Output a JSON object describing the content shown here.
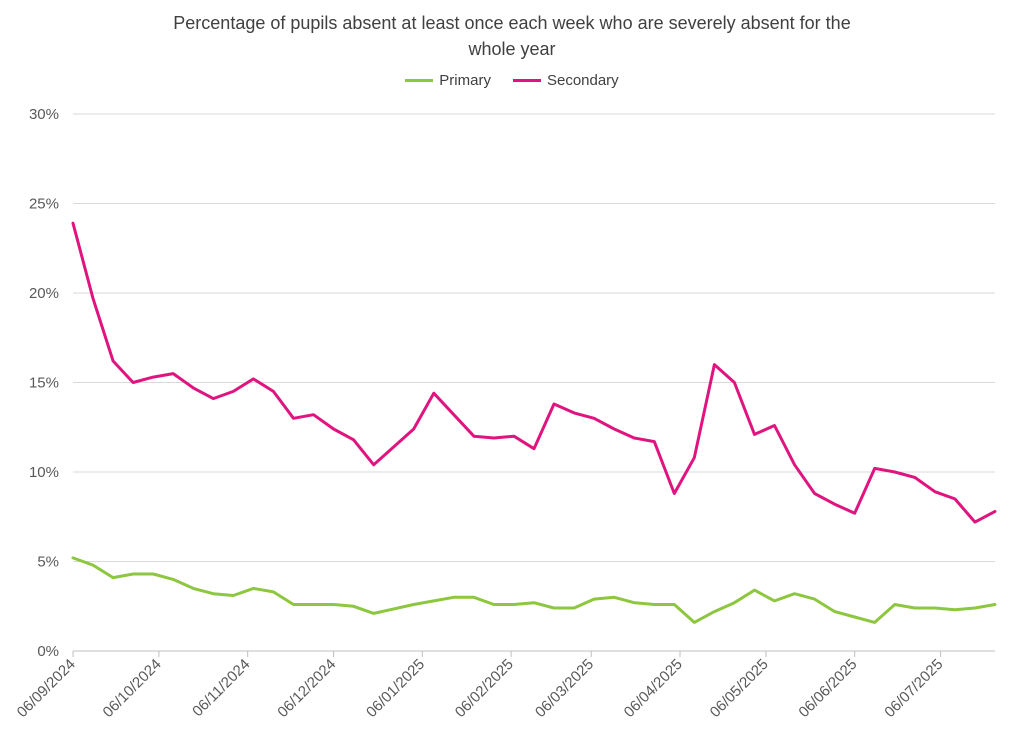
{
  "chart_data": {
    "type": "line",
    "title": "Percentage of pupils absent at least once each week who are severely absent for the whole year",
    "title_lines": [
      "Percentage of pupils absent at least once each week who are severely absent for the",
      "whole year"
    ],
    "xlabel": "",
    "ylabel": "",
    "ylim": [
      0,
      30
    ],
    "yticks": [
      "0%",
      "5%",
      "10%",
      "15%",
      "20%",
      "25%",
      "30%"
    ],
    "ytick_values": [
      0,
      5,
      10,
      15,
      20,
      25,
      30
    ],
    "xticks": [
      "06/09/2024",
      "06/10/2024",
      "06/11/2024",
      "06/12/2024",
      "06/01/2025",
      "06/02/2025",
      "06/03/2025",
      "06/04/2025",
      "06/05/2025",
      "06/06/2025",
      "06/07/2025"
    ],
    "x": [
      "06/09/2024",
      "13/09/2024",
      "20/09/2024",
      "27/09/2024",
      "04/10/2024",
      "11/10/2024",
      "18/10/2024",
      "25/10/2024",
      "01/11/2024",
      "08/11/2024",
      "15/11/2024",
      "22/11/2024",
      "29/11/2024",
      "06/12/2024",
      "13/12/2024",
      "20/12/2024",
      "03/01/2025",
      "10/01/2025",
      "17/01/2025",
      "24/01/2025",
      "31/01/2025",
      "07/02/2025",
      "14/02/2025",
      "21/02/2025",
      "28/02/2025",
      "07/03/2025",
      "14/03/2025",
      "21/03/2025",
      "28/03/2025",
      "04/04/2025",
      "11/04/2025",
      "18/04/2025",
      "25/04/2025",
      "02/05/2025",
      "09/05/2025",
      "16/05/2025",
      "23/05/2025",
      "30/05/2025",
      "06/06/2025",
      "13/06/2025",
      "20/06/2025",
      "27/06/2025",
      "04/07/2025",
      "11/07/2025",
      "18/07/2025",
      "25/07/2025"
    ],
    "series": [
      {
        "name": "Primary",
        "color": "#8dc63f",
        "values": [
          5.2,
          4.8,
          4.1,
          4.3,
          4.3,
          4.0,
          3.5,
          3.2,
          3.1,
          3.5,
          3.3,
          2.6,
          2.6,
          2.6,
          2.5,
          2.1,
          2.6,
          2.8,
          3.0,
          3.0,
          2.6,
          2.6,
          2.7,
          2.4,
          2.4,
          2.9,
          3.0,
          2.7,
          2.6,
          2.6,
          1.6,
          2.2,
          2.7,
          3.4,
          2.8,
          3.2,
          2.9,
          2.2,
          1.9,
          1.6,
          2.6,
          2.4,
          2.4,
          2.3,
          2.4,
          2.6
        ]
      },
      {
        "name": "Secondary",
        "color": "#e0147f",
        "values": [
          23.9,
          19.7,
          16.2,
          15.0,
          15.3,
          15.5,
          14.7,
          14.1,
          14.5,
          15.2,
          14.5,
          13.0,
          13.2,
          12.4,
          11.8,
          10.4,
          12.4,
          14.4,
          13.2,
          12.0,
          11.9,
          12.0,
          11.3,
          13.8,
          13.3,
          13.0,
          12.4,
          11.9,
          11.7,
          8.8,
          10.8,
          16.0,
          15.0,
          12.1,
          12.6,
          10.4,
          8.8,
          8.2,
          7.7,
          10.2,
          10.0,
          9.7,
          8.9,
          8.5,
          7.2,
          7.8
        ]
      }
    ],
    "grid": true,
    "legend_position": "top-center"
  }
}
